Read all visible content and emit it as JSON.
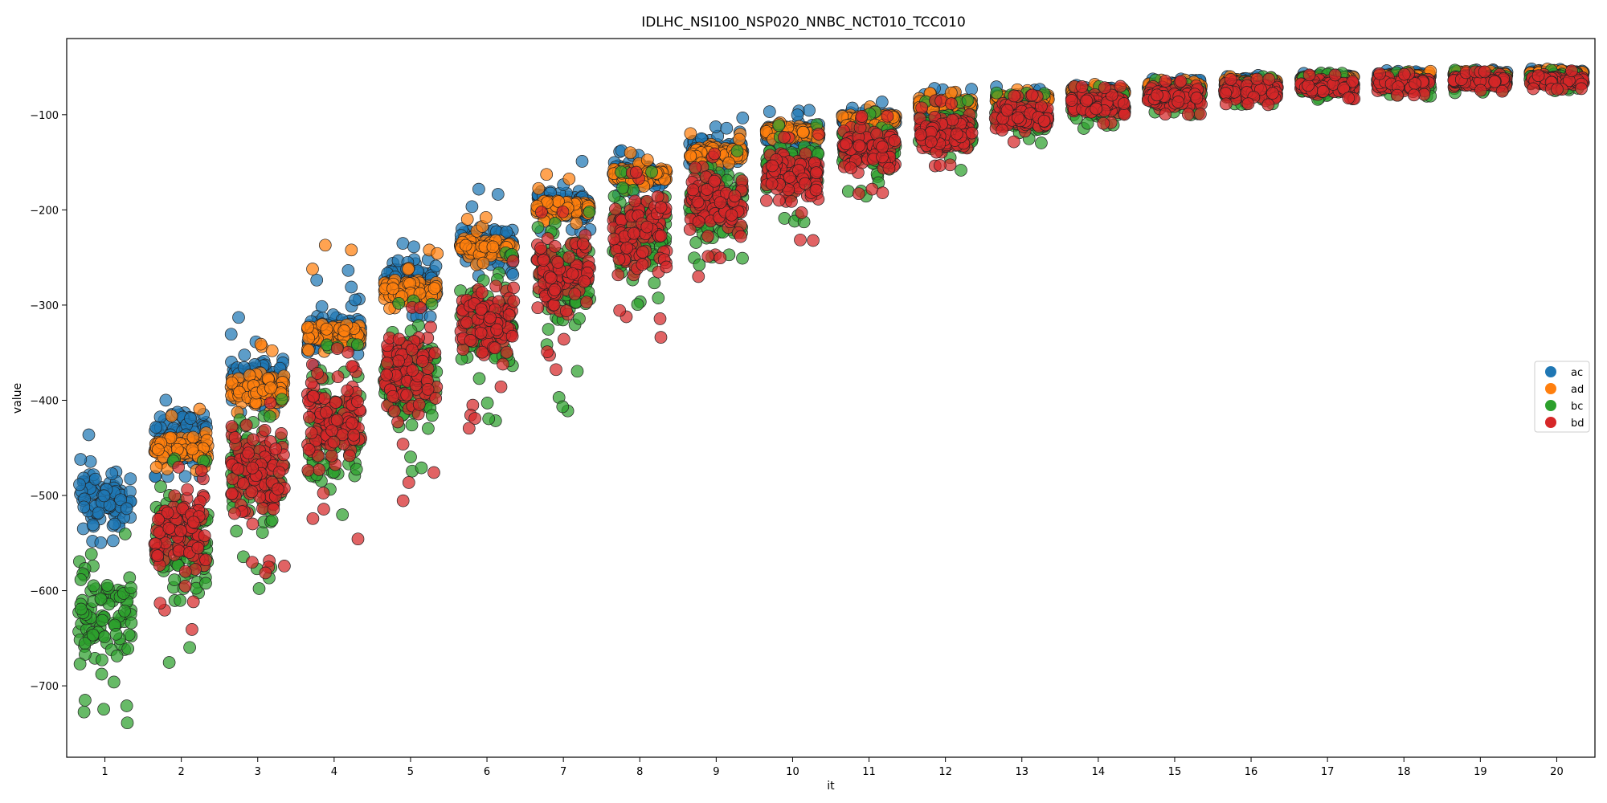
{
  "chart_data": {
    "type": "scatter",
    "title": "IDLHC_NSI100_NSP020_NNBC_NCT010_TCC010",
    "xlabel": "it",
    "ylabel": "value",
    "xlim": [
      0.5,
      20.5
    ],
    "ylim": [
      -775,
      -20
    ],
    "xticks": [
      1,
      2,
      3,
      4,
      5,
      6,
      7,
      8,
      9,
      10,
      11,
      12,
      13,
      14,
      15,
      16,
      17,
      18,
      19,
      20
    ],
    "yticks": [
      -700,
      -600,
      -500,
      -400,
      -300,
      -200,
      -100
    ],
    "ytick_labels": [
      "−700",
      "−600",
      "−500",
      "−400",
      "−300",
      "−200",
      "−100"
    ],
    "jitter_halfwidth": 0.35,
    "grid": false,
    "legend_position": "right",
    "series": [
      {
        "name": "ac",
        "color": "#1f77b4",
        "bands": [
          {
            "it": 1,
            "low": -545,
            "high": -465,
            "min_out": -550,
            "max_out": -430
          },
          {
            "it": 2,
            "low": -480,
            "high": -400,
            "min_out": -480,
            "max_out": -378
          },
          {
            "it": 3,
            "low": -410,
            "high": -345,
            "min_out": -415,
            "max_out": -285
          },
          {
            "it": 4,
            "low": -360,
            "high": -295,
            "min_out": -365,
            "max_out": -262
          },
          {
            "it": 5,
            "low": -310,
            "high": -245,
            "min_out": -315,
            "max_out": -228
          },
          {
            "it": 6,
            "low": -265,
            "high": -210,
            "min_out": -270,
            "max_out": -175
          },
          {
            "it": 7,
            "low": -220,
            "high": -175,
            "min_out": -225,
            "max_out": -143
          },
          {
            "it": 8,
            "low": -180,
            "high": -145,
            "min_out": -185,
            "max_out": -132
          },
          {
            "it": 9,
            "low": -160,
            "high": -120,
            "min_out": -165,
            "max_out": -97
          },
          {
            "it": 10,
            "low": -135,
            "high": -105,
            "min_out": -140,
            "max_out": -90
          },
          {
            "it": 11,
            "low": -115,
            "high": -95,
            "min_out": -118,
            "max_out": -84
          },
          {
            "it": 12,
            "low": -100,
            "high": -82,
            "min_out": -102,
            "max_out": -72
          },
          {
            "it": 13,
            "low": -90,
            "high": -76,
            "min_out": -92,
            "max_out": -70
          },
          {
            "it": 14,
            "low": -82,
            "high": -70,
            "min_out": -84,
            "max_out": -65
          },
          {
            "it": 15,
            "low": -75,
            "high": -64,
            "min_out": -77,
            "max_out": -62
          },
          {
            "it": 16,
            "low": -70,
            "high": -60,
            "min_out": -72,
            "max_out": -58
          },
          {
            "it": 17,
            "low": -66,
            "high": -57,
            "min_out": -68,
            "max_out": -55
          },
          {
            "it": 18,
            "low": -63,
            "high": -55,
            "min_out": -65,
            "max_out": -53
          },
          {
            "it": 19,
            "low": -61,
            "high": -54,
            "min_out": -62,
            "max_out": -52
          },
          {
            "it": 20,
            "low": -60,
            "high": -53,
            "min_out": -61,
            "max_out": -51
          }
        ]
      },
      {
        "name": "ad",
        "color": "#ff7f0e",
        "bands": [
          {
            "it": 2,
            "low": -470,
            "high": -430,
            "min_out": -475,
            "max_out": -385
          },
          {
            "it": 3,
            "low": -410,
            "high": -365,
            "min_out": -415,
            "max_out": -310
          },
          {
            "it": 4,
            "low": -345,
            "high": -315,
            "min_out": -350,
            "max_out": -226
          },
          {
            "it": 5,
            "low": -300,
            "high": -270,
            "min_out": -305,
            "max_out": -240
          },
          {
            "it": 6,
            "low": -255,
            "high": -225,
            "min_out": -260,
            "max_out": -205
          },
          {
            "it": 7,
            "low": -210,
            "high": -185,
            "min_out": -215,
            "max_out": -160
          },
          {
            "it": 8,
            "low": -175,
            "high": -152,
            "min_out": -180,
            "max_out": -135
          },
          {
            "it": 9,
            "low": -150,
            "high": -130,
            "min_out": -153,
            "max_out": -118
          },
          {
            "it": 10,
            "low": -125,
            "high": -110,
            "min_out": -128,
            "max_out": -102
          },
          {
            "it": 11,
            "low": -110,
            "high": -98,
            "min_out": -112,
            "max_out": -90
          },
          {
            "it": 12,
            "low": -95,
            "high": -82,
            "min_out": -98,
            "max_out": -74
          },
          {
            "it": 13,
            "low": -88,
            "high": -78,
            "min_out": -90,
            "max_out": -72
          },
          {
            "it": 14,
            "low": -80,
            "high": -72,
            "min_out": -82,
            "max_out": -67
          },
          {
            "it": 15,
            "low": -74,
            "high": -66,
            "min_out": -76,
            "max_out": -63
          },
          {
            "it": 16,
            "low": -69,
            "high": -62,
            "min_out": -70,
            "max_out": -59
          },
          {
            "it": 17,
            "low": -65,
            "high": -59,
            "min_out": -66,
            "max_out": -56
          },
          {
            "it": 18,
            "low": -62,
            "high": -57,
            "min_out": -63,
            "max_out": -54
          },
          {
            "it": 19,
            "low": -60,
            "high": -55,
            "min_out": -61,
            "max_out": -53
          },
          {
            "it": 20,
            "low": -59,
            "high": -54,
            "min_out": -60,
            "max_out": -52
          }
        ]
      },
      {
        "name": "bc",
        "color": "#2ca02c",
        "bands": [
          {
            "it": 1,
            "low": -705,
            "high": -545,
            "min_out": -743,
            "max_out": -540
          },
          {
            "it": 2,
            "low": -630,
            "high": -465,
            "min_out": -718,
            "max_out": -460
          },
          {
            "it": 3,
            "low": -560,
            "high": -400,
            "min_out": -608,
            "max_out": -395
          },
          {
            "it": 4,
            "low": -510,
            "high": -345,
            "min_out": -530,
            "max_out": -340
          },
          {
            "it": 5,
            "low": -450,
            "high": -300,
            "min_out": -495,
            "max_out": -295
          },
          {
            "it": 6,
            "low": -390,
            "high": -250,
            "min_out": -440,
            "max_out": -245
          },
          {
            "it": 7,
            "low": -340,
            "high": -205,
            "min_out": -412,
            "max_out": -200
          },
          {
            "it": 8,
            "low": -290,
            "high": -165,
            "min_out": -305,
            "max_out": -160
          },
          {
            "it": 9,
            "low": -245,
            "high": -140,
            "min_out": -265,
            "max_out": -135
          },
          {
            "it": 10,
            "low": -200,
            "high": -115,
            "min_out": -215,
            "max_out": -110
          },
          {
            "it": 11,
            "low": -170,
            "high": -100,
            "min_out": -186,
            "max_out": -95
          },
          {
            "it": 12,
            "low": -145,
            "high": -88,
            "min_out": -163,
            "max_out": -84
          },
          {
            "it": 13,
            "low": -123,
            "high": -80,
            "min_out": -130,
            "max_out": -76
          },
          {
            "it": 14,
            "low": -108,
            "high": -72,
            "min_out": -117,
            "max_out": -68
          },
          {
            "it": 15,
            "low": -97,
            "high": -66,
            "min_out": -105,
            "max_out": -63
          },
          {
            "it": 16,
            "low": -88,
            "high": -62,
            "min_out": -92,
            "max_out": -59
          },
          {
            "it": 17,
            "low": -82,
            "high": -59,
            "min_out": -85,
            "max_out": -56
          },
          {
            "it": 18,
            "low": -78,
            "high": -57,
            "min_out": -81,
            "max_out": -54
          },
          {
            "it": 19,
            "low": -74,
            "high": -55,
            "min_out": -77,
            "max_out": -53
          },
          {
            "it": 20,
            "low": -72,
            "high": -54,
            "min_out": -75,
            "max_out": -52
          }
        ]
      },
      {
        "name": "bd",
        "color": "#d62728",
        "bands": [
          {
            "it": 2,
            "low": -600,
            "high": -475,
            "min_out": -688,
            "max_out": -470
          },
          {
            "it": 3,
            "low": -545,
            "high": -405,
            "min_out": -587,
            "max_out": -400
          },
          {
            "it": 4,
            "low": -495,
            "high": -350,
            "min_out": -548,
            "max_out": -345
          },
          {
            "it": 5,
            "low": -435,
            "high": -305,
            "min_out": -512,
            "max_out": -300
          },
          {
            "it": 6,
            "low": -380,
            "high": -255,
            "min_out": -440,
            "max_out": -250
          },
          {
            "it": 7,
            "low": -330,
            "high": -205,
            "min_out": -370,
            "max_out": -200
          },
          {
            "it": 8,
            "low": -285,
            "high": -165,
            "min_out": -346,
            "max_out": -160
          },
          {
            "it": 9,
            "low": -240,
            "high": -145,
            "min_out": -275,
            "max_out": -140
          },
          {
            "it": 10,
            "low": -200,
            "high": -125,
            "min_out": -243,
            "max_out": -120
          },
          {
            "it": 11,
            "low": -170,
            "high": -105,
            "min_out": -185,
            "max_out": -100
          },
          {
            "it": 12,
            "low": -145,
            "high": -90,
            "min_out": -160,
            "max_out": -85
          },
          {
            "it": 13,
            "low": -122,
            "high": -82,
            "min_out": -149,
            "max_out": -78
          },
          {
            "it": 14,
            "low": -107,
            "high": -73,
            "min_out": -110,
            "max_out": -70
          },
          {
            "it": 15,
            "low": -97,
            "high": -67,
            "min_out": -100,
            "max_out": -64
          },
          {
            "it": 16,
            "low": -88,
            "high": -63,
            "min_out": -90,
            "max_out": -60
          },
          {
            "it": 17,
            "low": -82,
            "high": -60,
            "min_out": -84,
            "max_out": -57
          },
          {
            "it": 18,
            "low": -78,
            "high": -58,
            "min_out": -80,
            "max_out": -55
          },
          {
            "it": 19,
            "low": -74,
            "high": -56,
            "min_out": -76,
            "max_out": -54
          },
          {
            "it": 20,
            "low": -72,
            "high": -55,
            "min_out": -74,
            "max_out": -53
          }
        ]
      }
    ]
  }
}
